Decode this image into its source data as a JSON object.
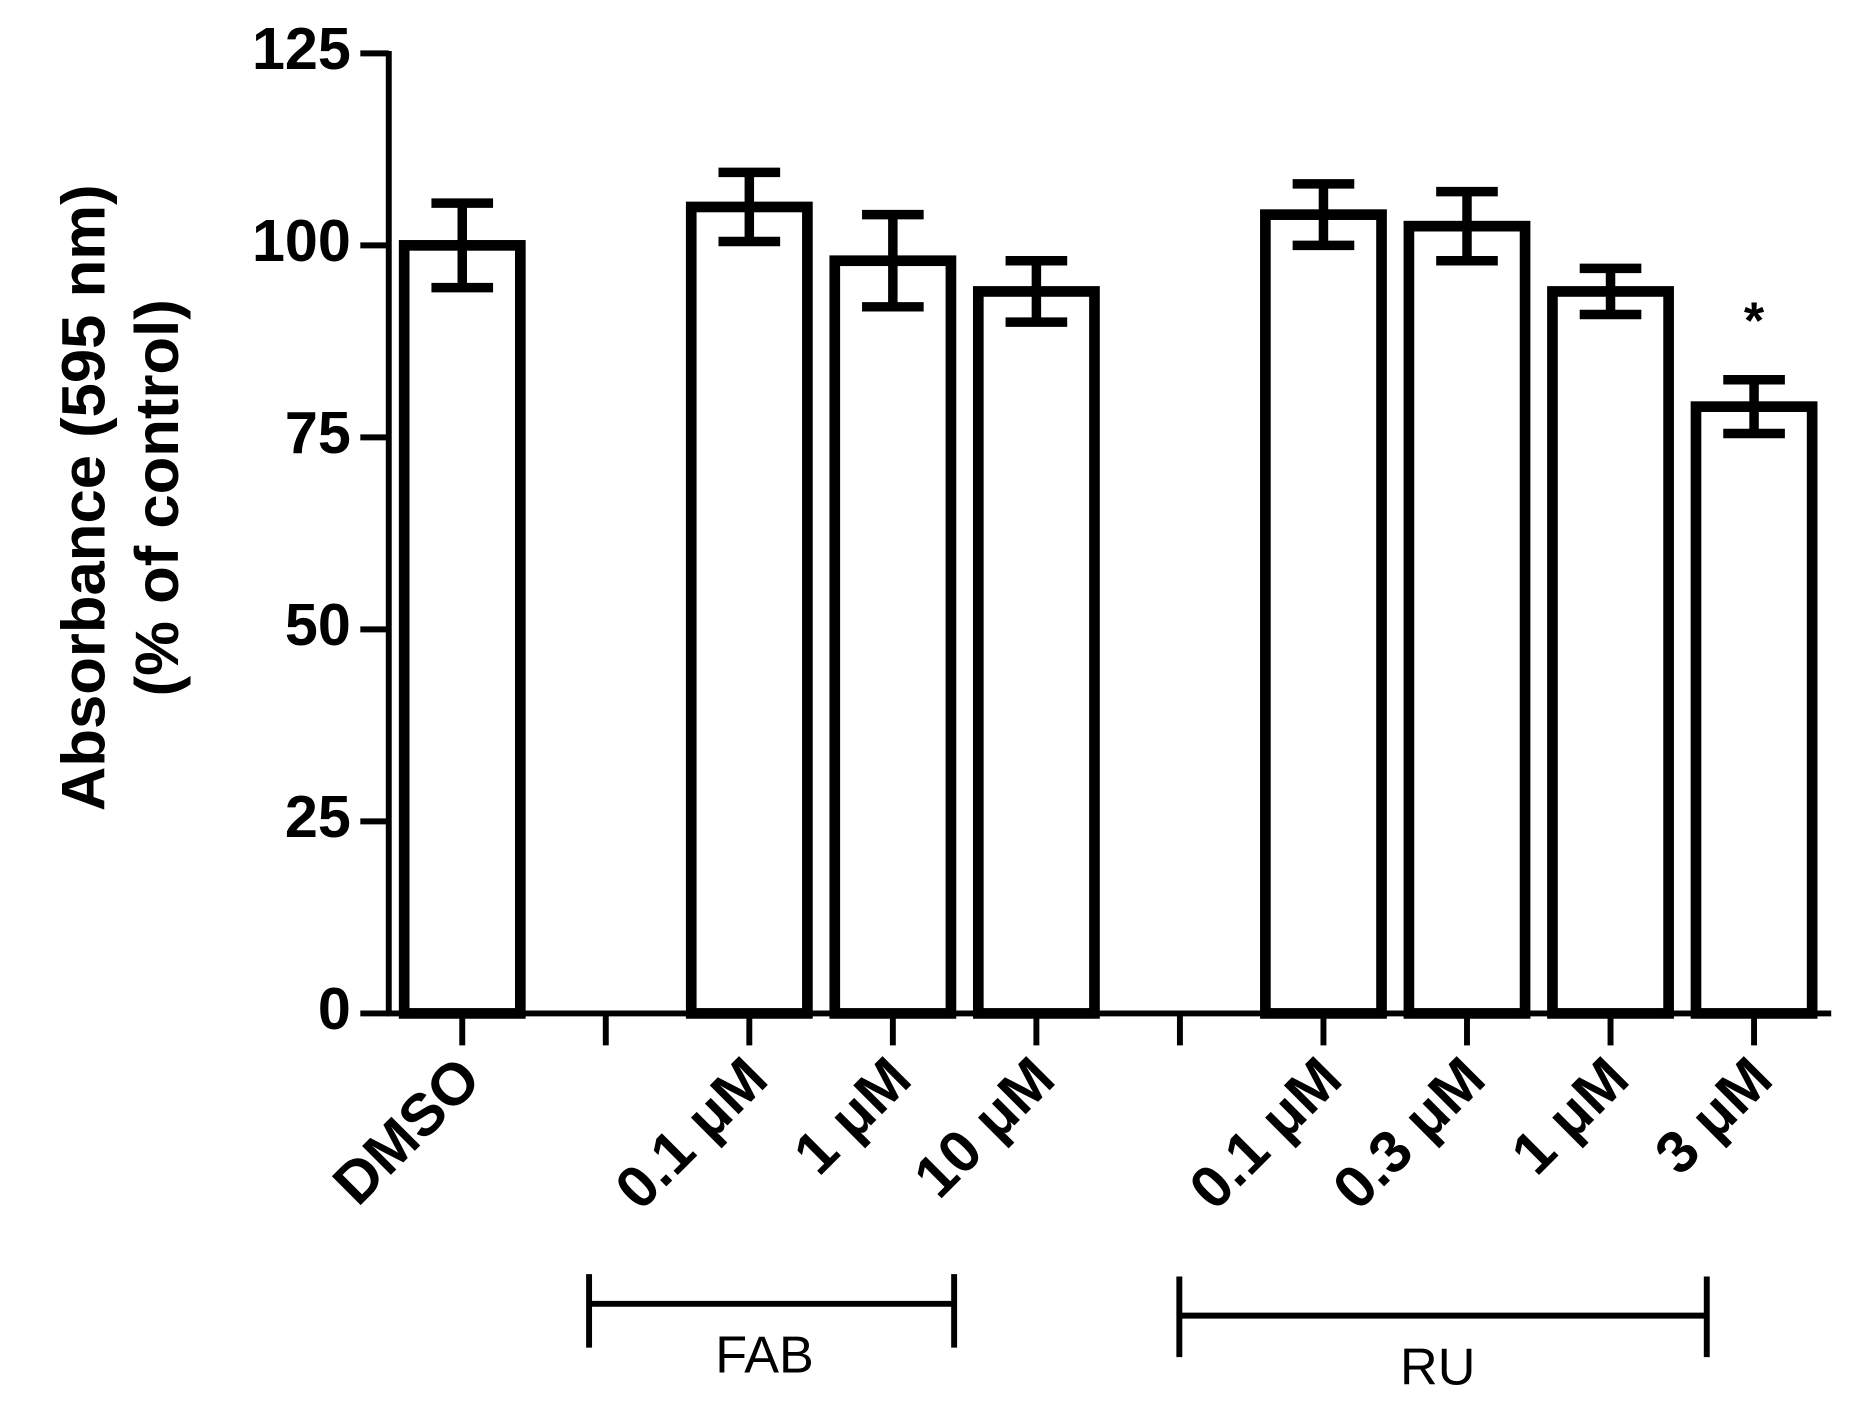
{
  "chart_data": {
    "type": "bar",
    "y_label": [
      "Absorbance (595 nm)",
      "(% of control)"
    ],
    "categories": [
      "DMSO",
      null,
      "0.1 μM",
      "1 μM",
      "10 μM",
      null,
      "0.1 μM",
      "0.3 μM",
      "1 μM",
      "3 μM"
    ],
    "values": [
      100,
      null,
      105,
      98,
      94,
      null,
      104,
      102.5,
      94,
      79
    ],
    "errors": [
      5.5,
      null,
      4.5,
      6,
      4,
      null,
      4,
      4.5,
      3,
      3.5
    ],
    "color": "#ffffff",
    "ylim": [
      0,
      125
    ],
    "yticks": [
      0,
      25,
      50,
      75,
      100,
      125
    ],
    "group_labels": [
      "FAB",
      "RU"
    ],
    "annotations": [
      "*"
    ]
  }
}
